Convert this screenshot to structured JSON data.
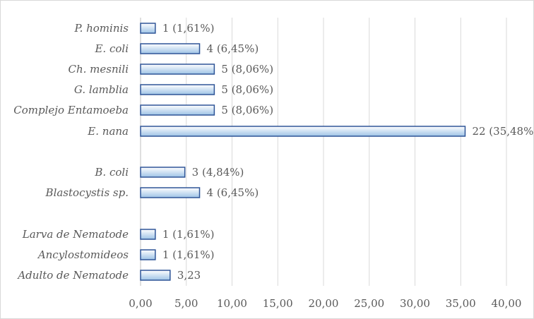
{
  "chart_data": {
    "type": "bar",
    "orientation": "horizontal",
    "title": "",
    "xlabel": "",
    "ylabel": "",
    "xlim": [
      0,
      40
    ],
    "x_ticks": [
      "0,00",
      "5,00",
      "10,00",
      "15,00",
      "20,00",
      "25,00",
      "30,00",
      "35,00",
      "40,00"
    ],
    "grid": true,
    "legend": "none",
    "categories": [
      "P. hominis",
      "E. coli",
      "Ch. mesnili",
      "G. lamblia",
      "Complejo Entamoeba",
      "E. nana",
      "B. coli",
      "Blastocystis sp.",
      "Larva de Nematode",
      "Ancylostomideos",
      "Adulto de Nematode"
    ],
    "values": [
      1.61,
      6.45,
      8.06,
      8.06,
      8.06,
      35.48,
      4.84,
      6.45,
      1.61,
      1.61,
      3.23
    ],
    "data_labels": [
      "1 (1,61%)",
      "4 (6,45%)",
      "5 (8,06%)",
      "5 (8,06%)",
      "5 (8,06%)",
      "22 (35,48%)",
      "3 (4,84%)",
      "4 (6,45%)",
      "1 (1,61%)",
      "1 (1,61%)",
      "3,23"
    ],
    "colors": {
      "bar_fill_top": "#ffffff",
      "bar_fill_bottom": "#9dc3e6",
      "bar_stroke": "#2f5597",
      "grid": "#d9d9d9",
      "text": "#595959"
    }
  }
}
